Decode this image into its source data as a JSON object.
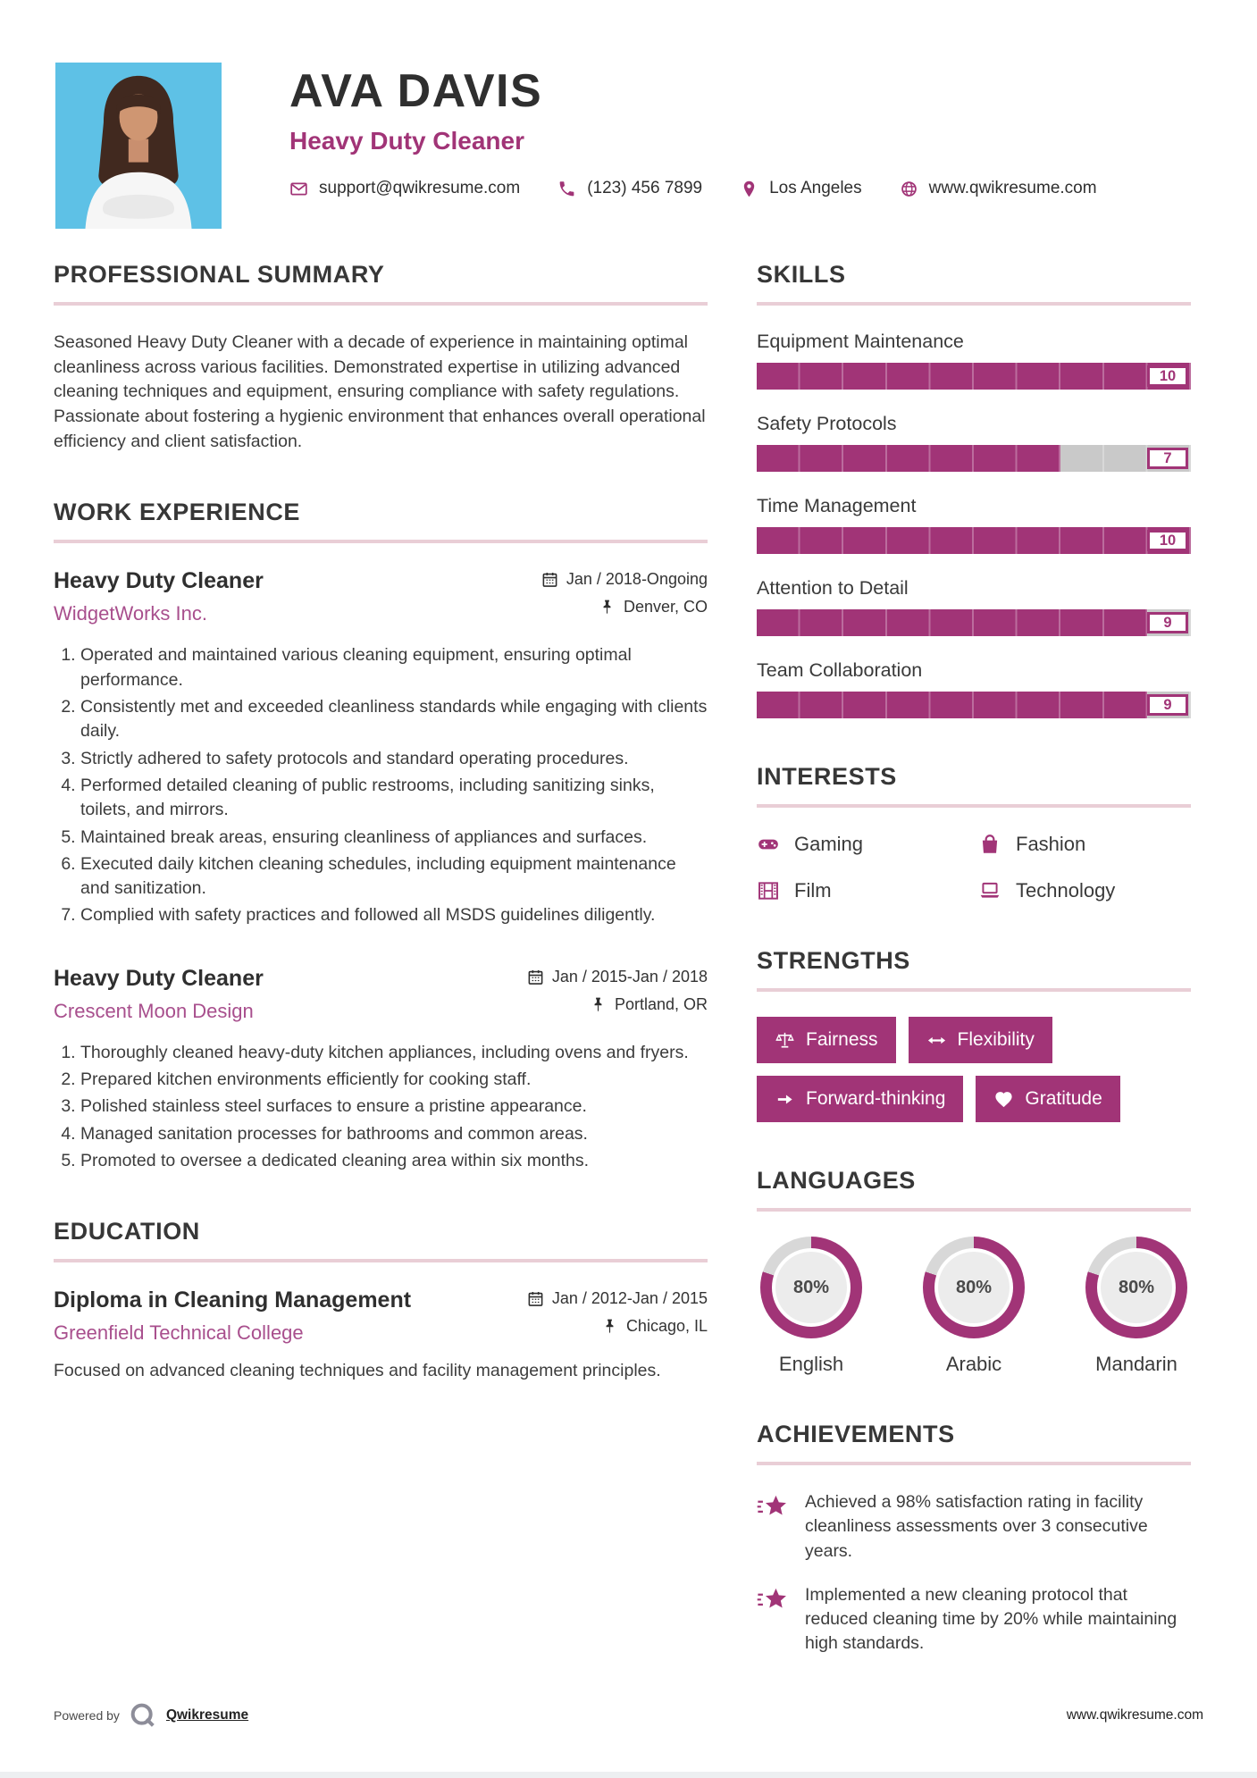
{
  "accent": "#a13477",
  "accent_light": "#a84f8d",
  "divider_color": "#e9ced6",
  "bar_gray": "#c9c9c9",
  "donut_gray": "#d8d8d8",
  "header": {
    "name": "AVA DAVIS",
    "title": "Heavy Duty Cleaner",
    "contacts": [
      {
        "icon": "email-icon",
        "text": "support@qwikresume.com",
        "interactable": true
      },
      {
        "icon": "phone-icon",
        "text": "(123) 456 7899",
        "interactable": false
      },
      {
        "icon": "location-icon",
        "text": "Los Angeles",
        "interactable": false
      },
      {
        "icon": "globe-icon",
        "text": "www.qwikresume.com",
        "interactable": true
      }
    ]
  },
  "summary": {
    "heading": "PROFESSIONAL SUMMARY",
    "text": "Seasoned Heavy Duty Cleaner with a decade of experience in maintaining optimal cleanliness across various facilities. Demonstrated expertise in utilizing advanced cleaning techniques and equipment, ensuring compliance with safety regulations. Passionate about fostering a hygienic environment that enhances overall operational efficiency and client satisfaction."
  },
  "work": {
    "heading": "WORK EXPERIENCE",
    "jobs": [
      {
        "title": "Heavy Duty Cleaner",
        "company": "WidgetWorks Inc.",
        "dates": "Jan / 2018-Ongoing",
        "location": "Denver, CO",
        "bullets": [
          "Operated and maintained various cleaning equipment, ensuring optimal performance.",
          "Consistently met and exceeded cleanliness standards while engaging with clients daily.",
          "Strictly adhered to safety protocols and standard operating procedures.",
          "Performed detailed cleaning of public restrooms, including sanitizing sinks, toilets, and mirrors.",
          "Maintained break areas, ensuring cleanliness of appliances and surfaces.",
          "Executed daily kitchen cleaning schedules, including equipment maintenance and sanitization.",
          "Complied with safety practices and followed all MSDS guidelines diligently."
        ]
      },
      {
        "title": "Heavy Duty Cleaner",
        "company": "Crescent Moon Design",
        "dates": "Jan / 2015-Jan / 2018",
        "location": "Portland, OR",
        "bullets": [
          "Thoroughly cleaned heavy-duty kitchen appliances, including ovens and fryers.",
          "Prepared kitchen environments efficiently for cooking staff.",
          "Polished stainless steel surfaces to ensure a pristine appearance.",
          "Managed sanitation processes for bathrooms and common areas.",
          "Promoted to oversee a dedicated cleaning area within six months."
        ]
      }
    ]
  },
  "education": {
    "heading": "EDUCATION",
    "degree": "Diploma in Cleaning Management",
    "school": "Greenfield Technical College",
    "dates": "Jan / 2012-Jan / 2015",
    "location": "Chicago, IL",
    "description": "Focused on advanced cleaning techniques and facility management principles."
  },
  "skills": {
    "heading": "SKILLS",
    "max": 10,
    "items": [
      {
        "name": "Equipment Maintenance",
        "score": 10
      },
      {
        "name": "Safety Protocols",
        "score": 7
      },
      {
        "name": "Time Management",
        "score": 10
      },
      {
        "name": "Attention to Detail",
        "score": 9
      },
      {
        "name": "Team Collaboration",
        "score": 9
      }
    ]
  },
  "interests": {
    "heading": "INTERESTS",
    "items": [
      {
        "icon": "gamepad-icon",
        "label": "Gaming"
      },
      {
        "icon": "bag-icon",
        "label": "Fashion"
      },
      {
        "icon": "film-icon",
        "label": "Film"
      },
      {
        "icon": "laptop-icon",
        "label": "Technology"
      }
    ]
  },
  "strengths": {
    "heading": "STRENGTHS",
    "items": [
      {
        "icon": "scale-icon",
        "label": "Fairness"
      },
      {
        "icon": "arrows-icon",
        "label": "Flexibility"
      },
      {
        "icon": "arrow-right-icon",
        "label": "Forward-thinking"
      },
      {
        "icon": "heart-icon",
        "label": "Gratitude"
      }
    ]
  },
  "languages": {
    "heading": "LANGUAGES",
    "items": [
      {
        "name": "English",
        "percent": 80
      },
      {
        "name": "Arabic",
        "percent": 80
      },
      {
        "name": "Mandarin",
        "percent": 80
      }
    ]
  },
  "achievements": {
    "heading": "ACHIEVEMENTS",
    "icon": "shooting-star-icon",
    "items": [
      "Achieved a 98% satisfaction rating in facility cleanliness assessments over 3 consecutive years.",
      "Implemented a new cleaning protocol that reduced cleaning time by 20% while maintaining high standards."
    ]
  },
  "footer": {
    "powered_by": "Powered by",
    "brand": "Qwikresume",
    "website": "www.qwikresume.com"
  }
}
